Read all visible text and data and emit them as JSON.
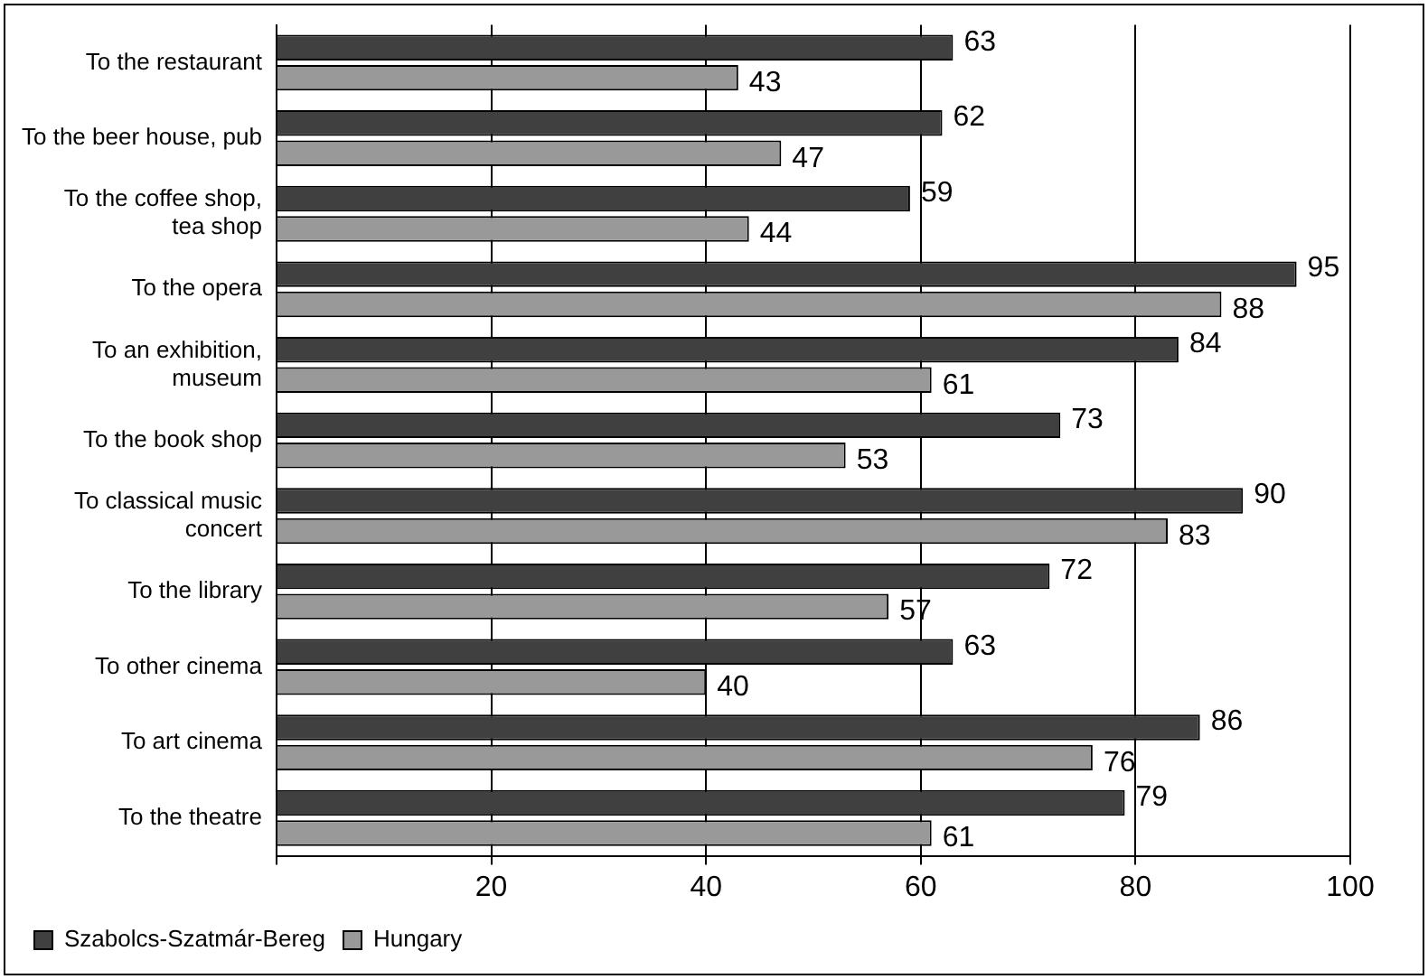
{
  "chart_data": {
    "type": "bar",
    "orientation": "horizontal",
    "categories": [
      "To the restaurant",
      "To the beer house, pub",
      "To the coffee shop, tea shop",
      "To the opera",
      "To an exhibition, museum",
      "To the book shop",
      "To classical music concert",
      "To the library",
      "To other cinema",
      "To art cinema",
      "To the theatre"
    ],
    "series": [
      {
        "name": "Szabolcs-Szatmár-Bereg",
        "color": "#404040",
        "values": [
          63,
          62,
          59,
          95,
          84,
          73,
          90,
          72,
          63,
          86,
          79
        ]
      },
      {
        "name": "Hungary",
        "color": "#999999",
        "values": [
          43,
          47,
          44,
          88,
          61,
          53,
          83,
          57,
          40,
          76,
          61
        ]
      }
    ],
    "xlim": [
      0,
      100
    ],
    "xticks": [
      {
        "value": 0,
        "label": null
      },
      20,
      40,
      60,
      80,
      100
    ],
    "grid": "x",
    "legend": "bottom left",
    "data_labels": true
  }
}
